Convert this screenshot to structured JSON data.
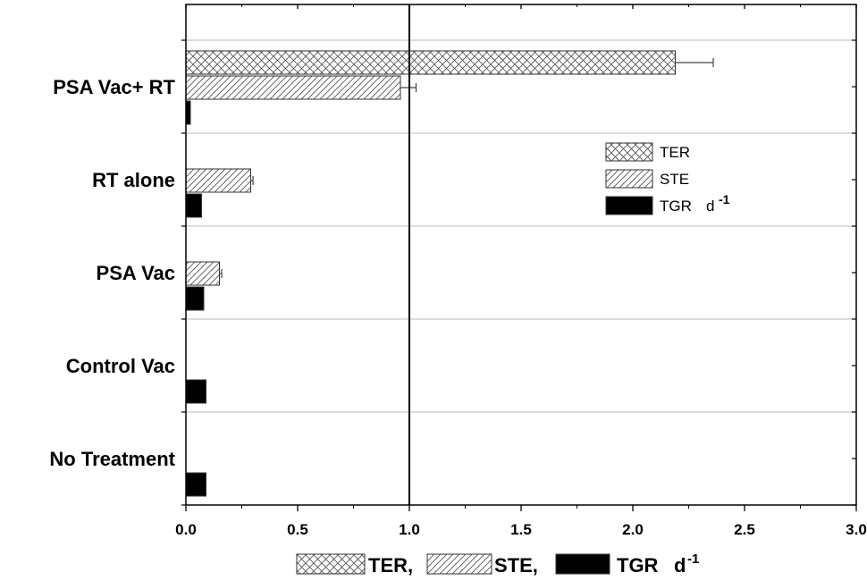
{
  "chart_data": {
    "type": "bar",
    "orientation": "horizontal",
    "categories": [
      "PSA Vac+ RT",
      "RT alone",
      "PSA Vac",
      "Control Vac",
      "No Treatment"
    ],
    "series": [
      {
        "name": "TER",
        "pattern": "crosshatch",
        "values": [
          2.19,
          null,
          null,
          null,
          null
        ],
        "errors": [
          0.17,
          null,
          null,
          null,
          null
        ]
      },
      {
        "name": "STE",
        "pattern": "diagonal",
        "values": [
          0.96,
          0.29,
          0.15,
          null,
          null
        ],
        "errors": [
          0.07,
          0.01,
          0.01,
          null,
          null
        ]
      },
      {
        "name": "TGR d -1",
        "pattern": "solid",
        "values": [
          0.02,
          0.07,
          0.08,
          0.09,
          0.09
        ],
        "errors": [
          null,
          null,
          null,
          null,
          null
        ]
      }
    ],
    "xlim": [
      0,
      3.0
    ],
    "xticks": [
      "0.0",
      "0.5",
      "1.0",
      "1.5",
      "2.0",
      "2.5",
      "3.0"
    ],
    "reference_line_x": 1.0,
    "grid": "horizontal separators between groups",
    "legend": {
      "placement": "right",
      "entries": [
        {
          "label": "TER",
          "pattern": "crosshatch"
        },
        {
          "label": "STE",
          "pattern": "diagonal"
        },
        {
          "label": "TGR",
          "sup": "d -1",
          "pattern": "solid"
        }
      ]
    },
    "xlabel": {
      "parts": [
        {
          "label": "TER,",
          "pattern": "crosshatch"
        },
        {
          "label": "STE,",
          "pattern": "diagonal"
        },
        {
          "label": "TGR",
          "pattern": "solid",
          "unit": "d",
          "sup": "-1"
        }
      ]
    },
    "colors": {
      "bar_outline": "#333333",
      "fill_solid": "#000000",
      "grid": "#bbbbbb",
      "axis": "#000000"
    }
  }
}
